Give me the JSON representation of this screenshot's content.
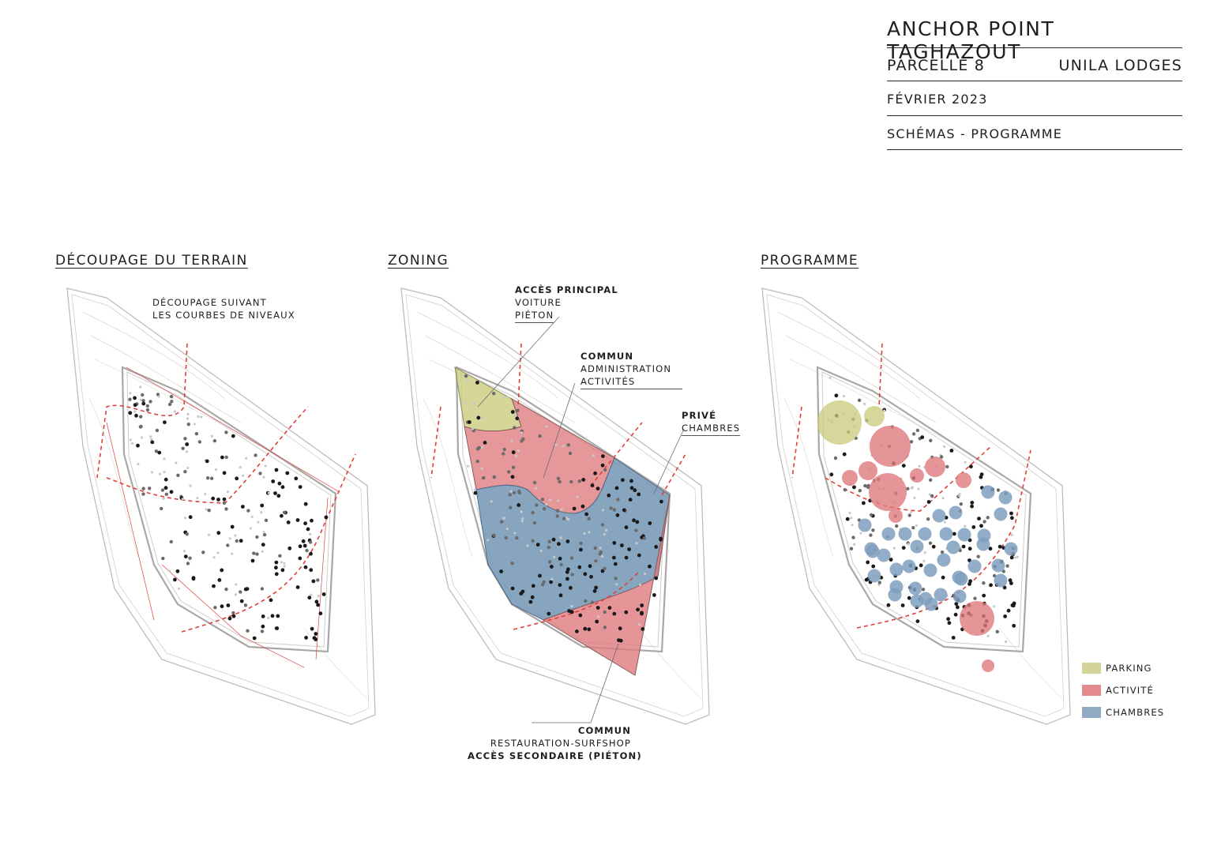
{
  "title_block": {
    "project": "ANCHOR POINT TAGHAZOUT",
    "parcel": "PARCELLE 8",
    "client": "UNILA LODGES",
    "date": "FÉVRIER 2023",
    "sheet": "SCHÉMAS - PROGRAMME"
  },
  "panels": {
    "decoupage": {
      "title": "DÉCOUPAGE DU TERRAIN",
      "note_line1": "DÉCOUPAGE SUIVANT",
      "note_line2": "LES COURBES DE NIVEAUX"
    },
    "zoning": {
      "title": "ZONING",
      "acces_principal": {
        "head": "ACCÈS PRINCIPAL",
        "l1": "VOITURE",
        "l2": "PIÉTON"
      },
      "commun_admin": {
        "head": "COMMUN",
        "l1": "ADMINISTRATION",
        "l2": "ACTIVITÉS"
      },
      "prive": {
        "head": "PRIVÉ",
        "l1": "CHAMBRES"
      },
      "commun_resto": {
        "head": "COMMUN",
        "l1": "RESTAURATION-SURFSHOP",
        "l2": "ACCÈS SECONDAIRE (PIÉTON)"
      }
    },
    "programme": {
      "title": "PROGRAMME"
    }
  },
  "legend": [
    {
      "label": "PARKING",
      "color": "#d4d39a"
    },
    {
      "label": "ACTIVITÉ",
      "color": "#e38a8c"
    },
    {
      "label": "CHAMBRES",
      "color": "#90aac4"
    }
  ],
  "colors": {
    "parking_zone": "#c9ca7a",
    "activity_zone": "#df7a7e",
    "rooms_zone": "#7395b4",
    "cut_lines": "#e0403a",
    "site_outline": "#b0b0b0"
  }
}
